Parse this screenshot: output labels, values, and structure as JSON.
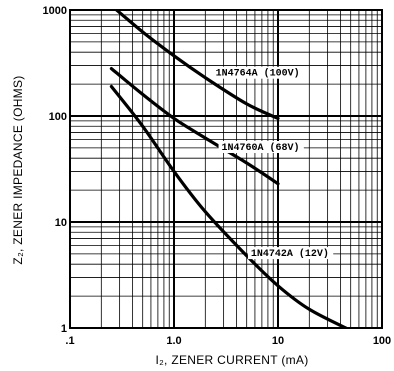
{
  "chart_data": {
    "type": "line",
    "xlabel": "I₂, ZENER CURRENT (mA)",
    "ylabel": "Z₂, ZENER IMPEDANCE (OHMS)",
    "x_scale": "log",
    "y_scale": "log",
    "xlim": [
      0.1,
      100
    ],
    "ylim": [
      1,
      1000
    ],
    "grid": true,
    "x_ticks": [
      {
        "value": 0.1,
        "label": ".1"
      },
      {
        "value": 1,
        "label": "1.0"
      },
      {
        "value": 10,
        "label": "10"
      },
      {
        "value": 100,
        "label": "100"
      }
    ],
    "y_ticks": [
      {
        "value": 1,
        "label": "1"
      },
      {
        "value": 10,
        "label": "10"
      },
      {
        "value": 100,
        "label": "100"
      },
      {
        "value": 1000,
        "label": "1000"
      }
    ],
    "series": [
      {
        "name": "1N4764A (100V)",
        "x": [
          0.25,
          0.5,
          1,
          2,
          5,
          10
        ],
        "y": [
          1100,
          620,
          370,
          230,
          130,
          95
        ]
      },
      {
        "name": "1N4760A (68V)",
        "x": [
          0.25,
          0.5,
          1,
          2,
          5,
          10
        ],
        "y": [
          280,
          160,
          95,
          62,
          36,
          23
        ]
      },
      {
        "name": "1N4742A (12V)",
        "x": [
          0.25,
          0.5,
          1,
          2,
          5,
          10,
          20,
          50
        ],
        "y": [
          190,
          80,
          30,
          12.5,
          4.8,
          2.5,
          1.5,
          0.95
        ]
      }
    ]
  }
}
